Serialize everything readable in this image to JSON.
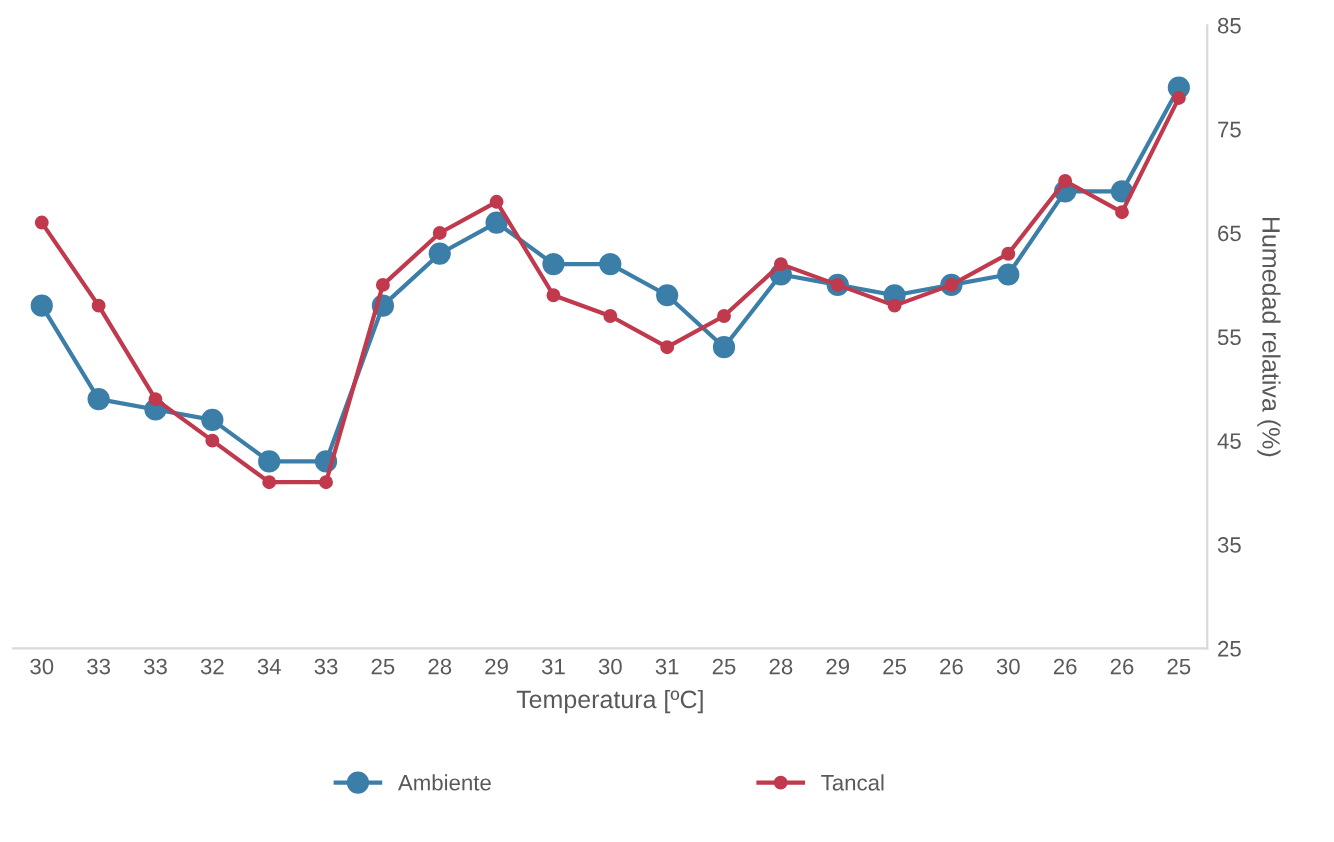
{
  "chart_data": {
    "type": "line",
    "xlabel": "Temperatura [ºC]",
    "ylabel": "Humedad relativa (%)",
    "categories": [
      "30",
      "33",
      "33",
      "32",
      "34",
      "33",
      "25",
      "28",
      "29",
      "31",
      "30",
      "31",
      "25",
      "28",
      "29",
      "25",
      "26",
      "30",
      "26",
      "26",
      "25"
    ],
    "series": [
      {
        "name": "Ambiente",
        "color": "#3b7ea8",
        "values": [
          58,
          49,
          48,
          47,
          43,
          43,
          58,
          63,
          66,
          62,
          62,
          59,
          54,
          61,
          60,
          59,
          60,
          61,
          69,
          69,
          79
        ]
      },
      {
        "name": "Tancal",
        "color": "#c0394d",
        "values": [
          66,
          58,
          49,
          45,
          41,
          41,
          60,
          65,
          68,
          59,
          57,
          54,
          57,
          62,
          60,
          58,
          60,
          63,
          70,
          67,
          78
        ]
      }
    ],
    "ylim": [
      25,
      85
    ],
    "yticks": [
      25,
      35,
      45,
      55,
      65,
      75,
      85
    ],
    "grid": false,
    "legend": "bottom",
    "marker": "circle",
    "line_style": "solid"
  }
}
